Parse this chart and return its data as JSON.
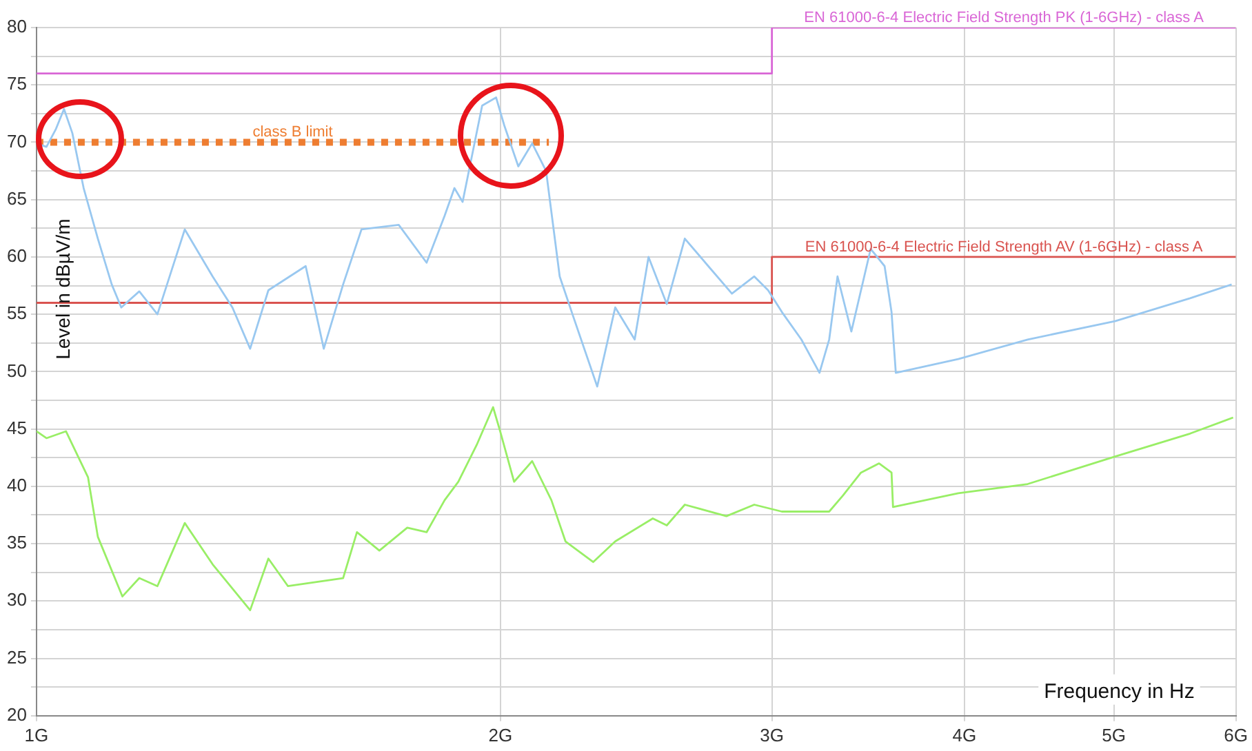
{
  "chart_data": {
    "type": "line",
    "xlabel": "Frequency in Hz",
    "ylabel": "Level in dBµV/m",
    "log": "x",
    "grid": true,
    "xlim": [
      1,
      6
    ],
    "xticks": [
      {
        "value": 1,
        "label": "1G"
      },
      {
        "value": 2,
        "label": "2G"
      },
      {
        "value": 3,
        "label": "3G"
      },
      {
        "value": 4,
        "label": "4G"
      },
      {
        "value": 5,
        "label": "5G"
      },
      {
        "value": 6,
        "label": "6G"
      }
    ],
    "ylim": [
      20,
      80
    ],
    "yticks": [
      20,
      {
        "value": 22.5,
        "label": null
      },
      25,
      {
        "value": 27.5,
        "label": null
      },
      30,
      {
        "value": 32.5,
        "label": null
      },
      35,
      {
        "value": 37.5,
        "label": null
      },
      40,
      {
        "value": 42.5,
        "label": null
      },
      45,
      {
        "value": 47.5,
        "label": null
      },
      50,
      {
        "value": 52.5,
        "label": null
      },
      55,
      {
        "value": 57.5,
        "label": null
      },
      60,
      {
        "value": 62.5,
        "label": null
      },
      65,
      {
        "value": 67.5,
        "label": null
      },
      70,
      {
        "value": 72.5,
        "label": null
      },
      75,
      {
        "value": 77.5,
        "label": null
      },
      80
    ],
    "series": [
      {
        "color": "#99c8f0",
        "x": [
          1.0,
          1.015,
          1.029,
          1.042,
          1.055,
          1.073,
          1.096,
          1.119,
          1.135,
          1.166,
          1.198,
          1.248,
          1.301,
          1.34,
          1.376,
          1.414,
          1.495,
          1.536,
          1.581,
          1.625,
          1.718,
          1.791,
          1.84,
          1.867,
          1.89,
          1.946,
          1.987,
          2.011,
          2.054,
          2.097,
          2.141,
          2.185,
          2.231,
          2.311,
          2.374,
          2.444,
          2.495,
          2.564,
          2.634,
          2.728,
          2.826,
          2.922,
          2.983,
          3.045,
          3.135,
          3.221,
          3.268,
          3.309,
          3.378,
          3.477,
          3.55,
          3.587,
          3.61,
          3.963,
          4.396,
          5.009,
          5.603,
          5.962
        ],
        "values": [
          69.9,
          69.6,
          71.1,
          72.9,
          70.8,
          66.0,
          61.6,
          57.6,
          55.6,
          57.0,
          55.0,
          62.4,
          58.3,
          55.6,
          52.0,
          57.1,
          59.2,
          52.0,
          57.6,
          62.4,
          62.8,
          59.5,
          63.6,
          66.0,
          64.8,
          73.2,
          73.9,
          71.5,
          67.9,
          69.9,
          67.5,
          58.3,
          54.7,
          48.7,
          55.6,
          52.8,
          60.0,
          55.9,
          61.6,
          59.2,
          56.8,
          58.3,
          57.1,
          55.2,
          52.8,
          49.9,
          52.8,
          58.3,
          53.5,
          60.7,
          59.2,
          55.2,
          49.9,
          51.1,
          52.8,
          54.4,
          56.4,
          57.6
        ]
      },
      {
        "color": "#99ee66",
        "x": [
          1.0,
          1.015,
          1.045,
          1.08,
          1.096,
          1.137,
          1.166,
          1.198,
          1.248,
          1.301,
          1.376,
          1.414,
          1.456,
          1.581,
          1.614,
          1.669,
          1.74,
          1.791,
          1.84,
          1.878,
          1.93,
          1.978,
          1.999,
          2.041,
          2.097,
          2.158,
          2.204,
          2.297,
          2.374,
          2.511,
          2.564,
          2.634,
          2.803,
          2.922,
          3.045,
          3.268,
          3.336,
          3.427,
          3.521,
          3.587,
          3.595,
          3.963,
          4.396,
          5.009,
          5.603,
          5.975
        ],
        "values": [
          44.8,
          44.2,
          44.8,
          40.8,
          35.6,
          30.4,
          32.0,
          31.3,
          36.8,
          33.2,
          29.2,
          33.7,
          31.3,
          32.0,
          36.0,
          34.4,
          36.4,
          36.0,
          38.8,
          40.4,
          43.6,
          46.9,
          44.8,
          40.4,
          42.2,
          38.8,
          35.2,
          33.4,
          35.2,
          37.2,
          36.6,
          38.4,
          37.4,
          38.4,
          37.8,
          37.8,
          39.2,
          41.2,
          42.0,
          41.2,
          38.2,
          39.4,
          40.2,
          42.6,
          44.6,
          46.0
        ]
      },
      {
        "name": "EN 61000-6-4 Electric Field Strength PK (1-6GHz) - class A",
        "color": "#d966d6",
        "x": [
          1,
          3,
          3,
          6
        ],
        "values": [
          76,
          76,
          80,
          80
        ]
      },
      {
        "name": "EN 61000-6-4 Electric Field Strength AV (1-6GHz) - class A",
        "color": "#d9534f",
        "x": [
          1,
          3,
          3,
          6
        ],
        "values": [
          56,
          56,
          60,
          60
        ]
      },
      {
        "name": "class B limit",
        "color": "#ee7d31",
        "line_style": "dotted",
        "x": [
          1,
          2.15
        ],
        "values": [
          70,
          70
        ]
      }
    ]
  }
}
